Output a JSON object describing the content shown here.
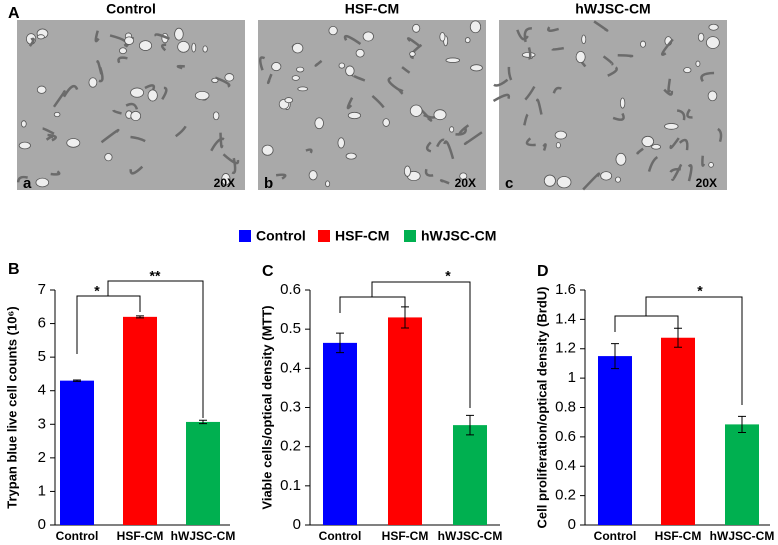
{
  "panel_a": {
    "letter": "A",
    "images": [
      {
        "title": "Control",
        "sub": "a",
        "magnification": "20X"
      },
      {
        "title": "HSF-CM",
        "sub": "b",
        "magnification": "20X"
      },
      {
        "title": "hWJSC-CM",
        "sub": "c",
        "magnification": "20X"
      }
    ]
  },
  "legend": [
    {
      "name": "Control",
      "color": "#0000ff"
    },
    {
      "name": "HSF-CM",
      "color": "#ff0000"
    },
    {
      "name": "hWJSC-CM",
      "color": "#00b050"
    }
  ],
  "chart_data": [
    {
      "type": "bar",
      "panel": "B",
      "y_label": "Trypan blue live cell counts (10⁶)",
      "categories": [
        "Control",
        "HSF-CM",
        "hWJSC-CM"
      ],
      "colors": [
        "#0000ff",
        "#ff0000",
        "#00b050"
      ],
      "values": [
        4.3,
        6.2,
        3.07
      ],
      "errors": [
        0.02,
        0.03,
        0.05
      ],
      "ylim": [
        0,
        7
      ],
      "yticks": [
        0,
        1,
        2,
        3,
        4,
        5,
        6,
        7
      ],
      "annotations": [
        {
          "text": "*"
        },
        {
          "text": "**"
        }
      ]
    },
    {
      "type": "bar",
      "panel": "C",
      "y_label": "Viable cells/optical density (MTT)",
      "categories": [
        "Control",
        "HSF-CM",
        "hWJSC-CM"
      ],
      "colors": [
        "#0000ff",
        "#ff0000",
        "#00b050"
      ],
      "values": [
        0.465,
        0.53,
        0.255
      ],
      "errors": [
        0.025,
        0.027,
        0.025
      ],
      "ylim": [
        0,
        0.6
      ],
      "yticks": [
        0,
        0.1,
        0.2,
        0.3,
        0.4,
        0.5,
        0.6
      ],
      "annotations": [
        {
          "text": "*"
        }
      ]
    },
    {
      "type": "bar",
      "panel": "D",
      "y_label": "Cell proliferation/optical density (BrdU)",
      "categories": [
        "Control",
        "HSF-CM",
        "hWJSC-CM"
      ],
      "colors": [
        "#0000ff",
        "#ff0000",
        "#00b050"
      ],
      "values": [
        1.15,
        1.275,
        0.685
      ],
      "errors": [
        0.085,
        0.065,
        0.055
      ],
      "ylim": [
        0,
        1.6
      ],
      "yticks": [
        0,
        0.2,
        0.4,
        0.6,
        0.8,
        1,
        1.2,
        1.4,
        1.6
      ],
      "annotations": [
        {
          "text": "*"
        }
      ]
    }
  ]
}
